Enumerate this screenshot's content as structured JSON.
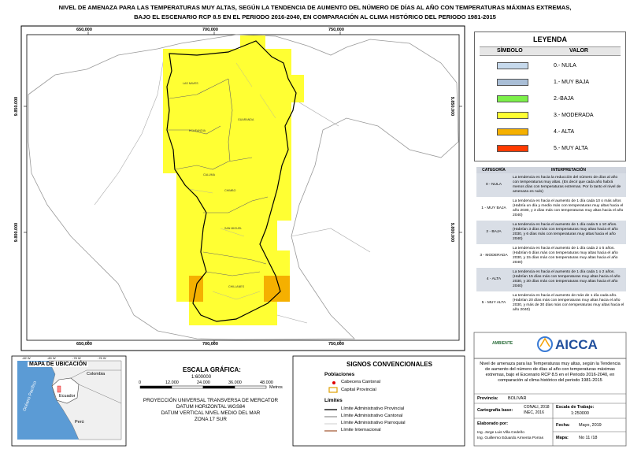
{
  "title": [
    "NIVEL DE AMENAZA PARA LAS TEMPERATURAS MUY ALTAS, SEGÚN LA TENDENCIA DE AUMENTO DEL NÚMERO DE DÍAS AL AÑO CON TEMPERATURAS MÁXIMAS EXTREMAS,",
    "BAJO EL ESCENARIO RCP 8.5 EN EL PERIODO 2016-2040, EN COMPARACIÓN AL CLIMA HISTÓRICO DEL PERIODO 1981-2015"
  ],
  "map": {
    "grid_top": [
      "650,000",
      "700,000",
      "750,000"
    ],
    "grid_bottom": [
      "650,000",
      "700,000",
      "750,000"
    ],
    "grid_left": [
      "9.850.000",
      "9.800.000"
    ],
    "grid_right": [
      "9.850.000",
      "9.800.000"
    ],
    "cantons": [
      "LAS NAVES",
      "ECHEANDIA",
      "GUARANDA",
      "CALUMA",
      "CHIMBO",
      "SAN MIGUEL",
      "CHILLANES"
    ]
  },
  "legend": {
    "title": "LEYENDA",
    "symbol_header": "SÍMBOLO",
    "value_header": "VALOR",
    "items": [
      {
        "label": "0.- NULA",
        "color": "#c6d9ec"
      },
      {
        "label": "1.- MUY BAJA",
        "color": "#a9bed6"
      },
      {
        "label": "2.-BAJA",
        "color": "#7cf04a"
      },
      {
        "label": "3.- MODERADA",
        "color": "#ffff33"
      },
      {
        "label": "4.- ALTA",
        "color": "#f5b000"
      },
      {
        "label": "5.- MUY ALTA",
        "color": "#ff3b00"
      }
    ]
  },
  "interpretation": {
    "headers": [
      "CATEGORÍA",
      "INTERPRETACIÓN"
    ],
    "rows": [
      [
        "0 - NULA",
        "La tendencia es hacia la reducción del número de días al año con temperaturas muy altas. (Es decir que cada año habrá menos días con temperaturas extremas. Por lo tanto el nivel de amenaza es nulo)"
      ],
      [
        "1 - MUY BAJA",
        "La tendencia es hacia el aumento de 1 día cada 10 o más años (Habría un día y medio más con temperaturas muy altas hacia el año 2030, y 3 días más con temperaturas muy altas hacia el año 2040)"
      ],
      [
        "2 - BAJA",
        "La tendencia es hacia el aumento de 1 día cada 5 o 10 años. (Habrían 3 días más con temperaturas muy altas hacia el año 2030, y 6 días más con temperaturas muy altas hacia el año 2040)"
      ],
      [
        "3 - MODERADA",
        "La tendencia es hacia el aumento de 1 día cada 2 o 5 años. (Habrían 6 días más con temperaturas muy altas hacia el año 2030, y 15 días más con temperaturas muy altas hacia el año 2040)"
      ],
      [
        "4 - ALTA",
        "La tendencia es hacia el aumento de 1 día cada 1 o 2 años. (Habrían 15 días más con temperaturas muy altas hacia el año 2030, y 30 días más con temperaturas muy altas hacia el año 2040)"
      ],
      [
        "5 - MUY ALTA",
        "La tendencia es hacia el aumento de más de 1 día cada año. (Habrían 20 días más con temperaturas muy altas hacia el año 2030, y más de 30 días más con temperaturas muy altas hacia el año 2040)"
      ]
    ]
  },
  "logos": {
    "ministry": "AMBIENTE",
    "brand": "AICCA"
  },
  "description": "Nivel de amenaza para las Temperaturas muy altas, según la Tendencia de aumento del número de días al año con temperaturas máximas extremas, bajo el Escenario RCP 8.5 en el Periodo 2016-2040, en comparación al clima histórico del periodo 1981-2015",
  "info": {
    "province_label": "Provincia:",
    "province": "BOLIVAR",
    "base_label": "Cartografía base:",
    "base": [
      "CONALI, 2018",
      "INEC, 2016"
    ],
    "scale_label": "Escala de Trabajo:",
    "scale": "1:250000",
    "author_label": "Elaborado por:",
    "authors": [
      "Ing. Jorge Luis Villa Cedeño",
      "Ing. Guillermo Eduardo Armenta Porras"
    ],
    "date_label": "Fecha:",
    "date": "Mayo, 2019",
    "map_label": "Mapa:",
    "map_no": "No 11 /18"
  },
  "location_map": {
    "title": "MAPA DE UBICACIÓN",
    "lon_ticks": [
      "-82 W",
      "-80 W",
      "-78 W",
      "-76 W"
    ],
    "countries": [
      "Colombia",
      "Ecuador",
      "Perú"
    ],
    "ocean": "Océano Pacífico"
  },
  "scale_bar": {
    "title": "ESCALA GRÁFICA:",
    "ratio": "1:600000",
    "ticks": [
      "0",
      "12.000",
      "24.000",
      "36.000",
      "48.000"
    ],
    "unit": "Metros",
    "projection": [
      "PROYECCIÓN UNIVERSAL TRANSVERSA DE MERCATOR",
      "DATUM HORIZONTAL WGS84",
      "DATUM VERTICAL NIVEL MEDIO DEL MAR",
      "ZONA 17 SUR"
    ]
  },
  "signs": {
    "title": "SIGNOS CONVENCIONALES",
    "populations_title": "Poblaciones",
    "populations": [
      "Cabecera Cantonal",
      "Capital Provincial"
    ],
    "limits_title": "Límites",
    "limits": [
      "Límite Administrativo Provincial",
      "Límite Administrativo Cantonal",
      "Límite Administrativo Parroquial",
      "Límite Internacional"
    ]
  }
}
